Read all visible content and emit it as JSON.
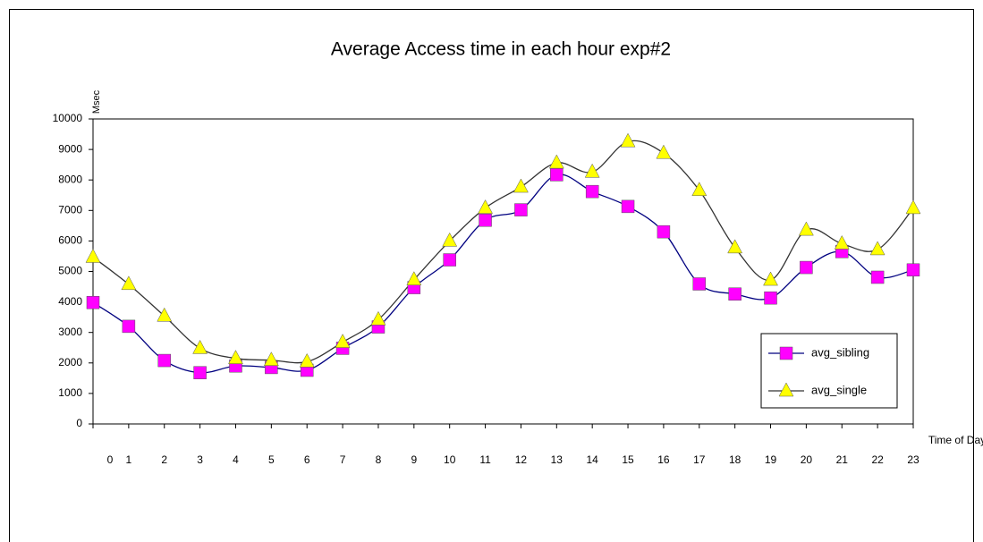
{
  "chart_data": {
    "type": "line",
    "title": "Average Access time in each hour exp#2",
    "y_label": "Msec",
    "x_label": "Time  of Day",
    "x": [
      0,
      1,
      2,
      3,
      4,
      5,
      6,
      7,
      8,
      9,
      10,
      11,
      12,
      13,
      14,
      15,
      16,
      17,
      18,
      19,
      20,
      21,
      22,
      23
    ],
    "xlim": [
      0,
      23
    ],
    "xticks": [
      0,
      1,
      2,
      3,
      4,
      5,
      6,
      7,
      8,
      9,
      10,
      11,
      12,
      13,
      14,
      15,
      16,
      17,
      18,
      19,
      20,
      21,
      22,
      23
    ],
    "ylim": [
      0,
      10000
    ],
    "yticks": [
      0,
      1000,
      2000,
      3000,
      4000,
      5000,
      6000,
      7000,
      8000,
      9000,
      10000
    ],
    "legend_position": "right",
    "smooth": true,
    "series": [
      {
        "name": "avg_sibling",
        "color": "#ff00ff",
        "line_color": "#000080",
        "marker": "square",
        "values": [
          3980,
          3200,
          2080,
          1680,
          1900,
          1850,
          1760,
          2480,
          3180,
          4470,
          5380,
          6680,
          7020,
          8170,
          7620,
          7130,
          6300,
          4590,
          4260,
          4130,
          5130,
          5650,
          4810,
          5050
        ]
      },
      {
        "name": "avg_single",
        "color": "#ffff00",
        "line_color": "#333333",
        "marker": "triangle",
        "values": [
          5470,
          4580,
          3540,
          2480,
          2150,
          2090,
          2040,
          2680,
          3420,
          4730,
          6000,
          7080,
          7770,
          8560,
          8260,
          9260,
          8880,
          7660,
          5780,
          4720,
          6360,
          5910,
          5720,
          7070
        ]
      }
    ]
  }
}
